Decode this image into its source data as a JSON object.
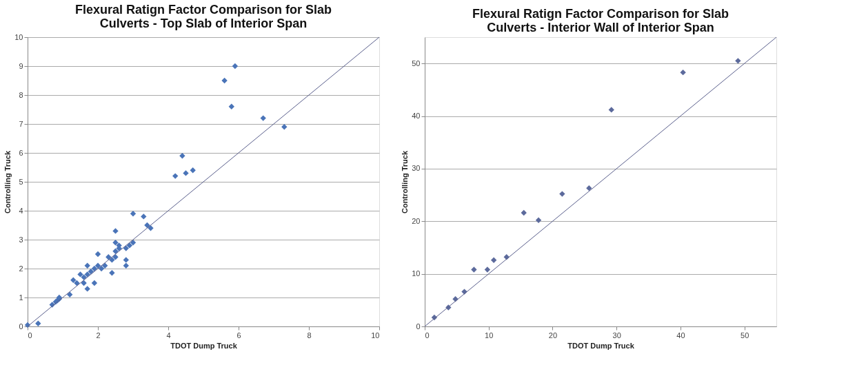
{
  "chart_data": [
    {
      "type": "scatter",
      "title": "Flexural Ratign Factor Comparison for Slab\nCulverts - Top Slab of Interior Span",
      "xlabel": "TDOT Dump Truck",
      "ylabel": "Controlling Truck",
      "xlim": [
        0,
        10
      ],
      "ylim": [
        0,
        10
      ],
      "xticks": [
        0,
        2,
        4,
        6,
        8,
        10
      ],
      "yticks": [
        0,
        1,
        2,
        3,
        4,
        5,
        6,
        7,
        8,
        9,
        10
      ],
      "grid": "y",
      "marker": "diamond",
      "series": [
        {
          "color": "#4a74b8",
          "x": [
            0,
            0.3,
            0.7,
            0.8,
            0.85,
            0.9,
            0.9,
            1.2,
            1.3,
            1.4,
            1.5,
            1.6,
            1.6,
            1.7,
            1.7,
            1.7,
            1.8,
            1.9,
            1.9,
            2.0,
            2.0,
            2.1,
            2.2,
            2.3,
            2.4,
            2.4,
            2.5,
            2.5,
            2.5,
            2.6,
            2.6,
            2.5,
            2.8,
            2.8,
            2.8,
            2.9,
            3.0,
            3.0,
            3.3,
            3.4,
            3.5,
            4.2,
            4.4,
            4.5,
            4.7,
            5.6,
            5.8,
            5.9,
            6.7,
            7.3
          ],
          "values": [
            0.05,
            0.1,
            0.75,
            0.85,
            0.9,
            0.95,
            1.0,
            1.1,
            1.6,
            1.5,
            1.8,
            1.7,
            1.5,
            1.8,
            2.1,
            1.3,
            1.9,
            2.0,
            1.5,
            2.1,
            2.5,
            2.0,
            2.1,
            2.4,
            2.3,
            1.85,
            2.4,
            2.6,
            3.3,
            2.8,
            2.7,
            2.9,
            2.7,
            2.3,
            2.1,
            2.8,
            2.9,
            3.9,
            3.8,
            3.5,
            3.4,
            5.2,
            5.9,
            5.3,
            5.4,
            8.5,
            7.6,
            9.0,
            7.2,
            6.9
          ]
        },
        {
          "type": "line",
          "color": "#5a5f8c",
          "marker": "none",
          "line_style": "solid",
          "x": [
            0,
            10
          ],
          "values": [
            0,
            10
          ]
        }
      ]
    },
    {
      "type": "scatter",
      "title": "Flexural Ratign Factor Comparison for Slab\nCulverts - Interior Wall of Interior Span",
      "xlabel": "TDOT Dump Truck",
      "ylabel": "Controlling Truck",
      "xlim": [
        0,
        55
      ],
      "ylim": [
        0,
        55
      ],
      "xticks": [
        0,
        10,
        20,
        30,
        40,
        50
      ],
      "yticks": [
        0,
        10,
        20,
        30,
        40,
        50
      ],
      "grid": "y",
      "marker": "diamond",
      "series": [
        {
          "color": "#5c6a9c",
          "x": [
            1.5,
            3.7,
            4.8,
            6.2,
            7.7,
            9.8,
            10.8,
            12.8,
            15.5,
            17.8,
            21.5,
            25.7,
            29.2,
            40.4,
            49.0
          ],
          "values": [
            1.7,
            3.6,
            5.2,
            6.6,
            10.8,
            10.8,
            12.6,
            13.2,
            21.6,
            20.2,
            25.2,
            26.3,
            41.2,
            48.3,
            50.5
          ]
        },
        {
          "type": "line",
          "color": "#5a5f8c",
          "marker": "none",
          "line_style": "solid",
          "x": [
            0,
            55
          ],
          "values": [
            0,
            55
          ]
        }
      ]
    }
  ]
}
